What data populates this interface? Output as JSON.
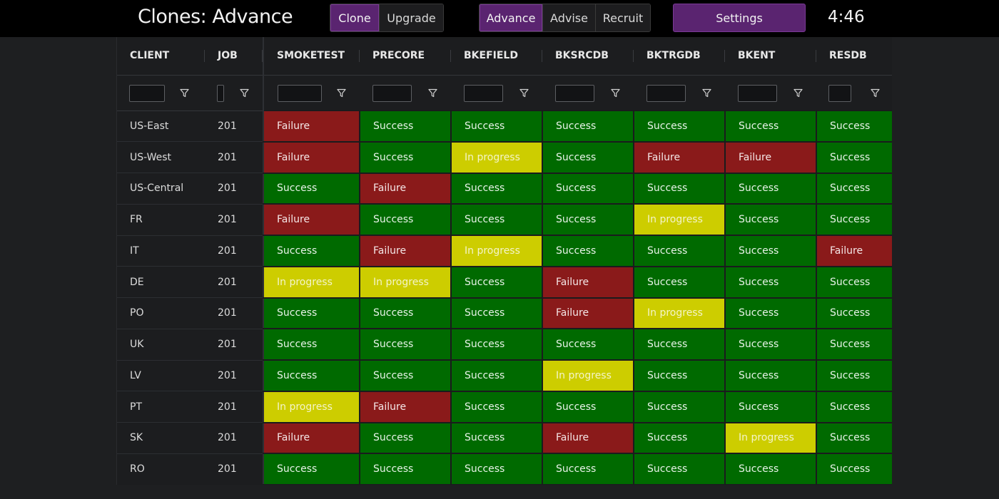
{
  "app": {
    "title": "Clones: Advance",
    "clock": "4:46"
  },
  "nav": {
    "group1": [
      {
        "label": "Clone",
        "active": true
      },
      {
        "label": "Upgrade",
        "active": false
      }
    ],
    "group2": [
      {
        "label": "Advance",
        "active": true
      },
      {
        "label": "Advise",
        "active": false
      },
      {
        "label": "Recruit",
        "active": false
      }
    ],
    "settings_label": "Settings"
  },
  "colors": {
    "accent": "#5a2470",
    "success": "#006a00",
    "failure": "#8a1a1a",
    "in_progress": "#cdcd00"
  },
  "table": {
    "columns": [
      "CLIENT",
      "JOB",
      "SMOKETEST",
      "PRECORE",
      "BKEFIELD",
      "BKSRCDB",
      "BKTRGDB",
      "BKENT",
      "RESDB"
    ],
    "filter_icon": "filter-icon",
    "rows": [
      {
        "client": "US-East",
        "job": "201",
        "statuses": [
          "Failure",
          "Success",
          "Success",
          "Success",
          "Success",
          "Success",
          "Success"
        ]
      },
      {
        "client": "US-West",
        "job": "201",
        "statuses": [
          "Failure",
          "Success",
          "In progress",
          "Success",
          "Failure",
          "Failure",
          "Success"
        ]
      },
      {
        "client": "US-Central",
        "job": "201",
        "statuses": [
          "Success",
          "Failure",
          "Success",
          "Success",
          "Success",
          "Success",
          "Success"
        ]
      },
      {
        "client": "FR",
        "job": "201",
        "statuses": [
          "Failure",
          "Success",
          "Success",
          "Success",
          "In progress",
          "Success",
          "Success"
        ]
      },
      {
        "client": "IT",
        "job": "201",
        "statuses": [
          "Success",
          "Failure",
          "In progress",
          "Success",
          "Success",
          "Success",
          "Failure"
        ]
      },
      {
        "client": "DE",
        "job": "201",
        "statuses": [
          "In progress",
          "In progress",
          "Success",
          "Failure",
          "Success",
          "Success",
          "Success"
        ]
      },
      {
        "client": "PO",
        "job": "201",
        "statuses": [
          "Success",
          "Success",
          "Success",
          "Failure",
          "In progress",
          "Success",
          "Success"
        ]
      },
      {
        "client": "UK",
        "job": "201",
        "statuses": [
          "Success",
          "Success",
          "Success",
          "Success",
          "Success",
          "Success",
          "Success"
        ]
      },
      {
        "client": "LV",
        "job": "201",
        "statuses": [
          "Success",
          "Success",
          "Success",
          "In progress",
          "Success",
          "Success",
          "Success"
        ]
      },
      {
        "client": "PT",
        "job": "201",
        "statuses": [
          "In progress",
          "Failure",
          "Success",
          "Success",
          "Success",
          "Success",
          "Success"
        ]
      },
      {
        "client": "SK",
        "job": "201",
        "statuses": [
          "Failure",
          "Success",
          "Success",
          "Failure",
          "Success",
          "In progress",
          "Success"
        ]
      },
      {
        "client": "RO",
        "job": "201",
        "statuses": [
          "Success",
          "Success",
          "Success",
          "Success",
          "Success",
          "Success",
          "Success"
        ]
      }
    ]
  }
}
